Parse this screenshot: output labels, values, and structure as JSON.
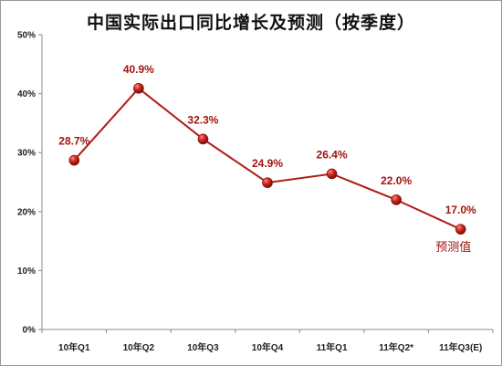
{
  "chart_data": {
    "type": "line",
    "title": "中国实际出口同比增长及预测（按季度）",
    "categories": [
      "10年Q1",
      "10年Q2",
      "10年Q3",
      "10年Q4",
      "11年Q1",
      "11年Q2*",
      "11年Q3(E)"
    ],
    "values": [
      28.7,
      40.9,
      32.3,
      24.9,
      26.4,
      22.0,
      17.0
    ],
    "data_labels": [
      "28.7%",
      "40.9%",
      "32.3%",
      "24.9%",
      "26.4%",
      "22.0%",
      "17.0%"
    ],
    "y_ticks": [
      "0%",
      "10%",
      "20%",
      "30%",
      "40%",
      "50%"
    ],
    "ylim": [
      0,
      50
    ],
    "annotation": "预测值",
    "xlabel": "",
    "ylabel": "",
    "grid": false,
    "colors": {
      "line": "#b01b16",
      "marker": "#c0201b"
    }
  }
}
